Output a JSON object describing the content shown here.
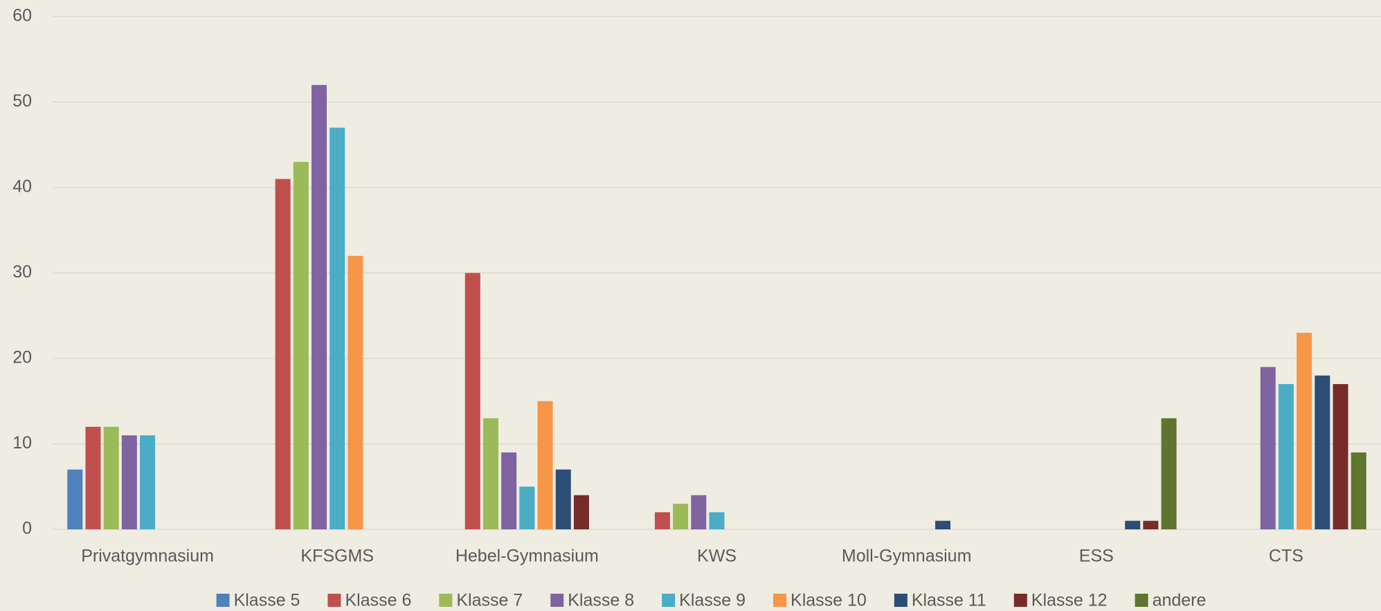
{
  "chart_data": {
    "type": "bar",
    "categories": [
      "Privatgymnasium",
      "KFSGMS",
      "Hebel-Gymnasium",
      "KWS",
      "Moll-Gymnasium",
      "ESS",
      "CTS"
    ],
    "series": [
      {
        "name": "Klasse 5",
        "color": "#4f81bd",
        "values": [
          7,
          0,
          0,
          0,
          0,
          0,
          0
        ]
      },
      {
        "name": "Klasse 6",
        "color": "#c0504d",
        "values": [
          12,
          41,
          30,
          2,
          0,
          0,
          0
        ]
      },
      {
        "name": "Klasse 7",
        "color": "#9bbb59",
        "values": [
          12,
          43,
          13,
          3,
          0,
          0,
          0
        ]
      },
      {
        "name": "Klasse 8",
        "color": "#8064a2",
        "values": [
          11,
          52,
          9,
          4,
          0,
          0,
          19
        ]
      },
      {
        "name": "Klasse 9",
        "color": "#4bacc6",
        "values": [
          11,
          47,
          5,
          2,
          0,
          0,
          17
        ]
      },
      {
        "name": "Klasse 10",
        "color": "#f79646",
        "values": [
          0,
          32,
          15,
          0,
          0,
          0,
          23
        ]
      },
      {
        "name": "Klasse 11",
        "color": "#2c4d75",
        "values": [
          0,
          0,
          7,
          0,
          1,
          1,
          18
        ]
      },
      {
        "name": "Klasse 12",
        "color": "#772c2a",
        "values": [
          0,
          0,
          4,
          0,
          0,
          1,
          17
        ]
      },
      {
        "name": "andere",
        "color": "#5f7530",
        "values": [
          0,
          0,
          0,
          0,
          0,
          13,
          9
        ]
      }
    ],
    "ylim": [
      0,
      60
    ],
    "yticks": [
      0,
      10,
      20,
      30,
      40,
      50,
      60
    ],
    "grid": true,
    "legend": "bottom"
  }
}
